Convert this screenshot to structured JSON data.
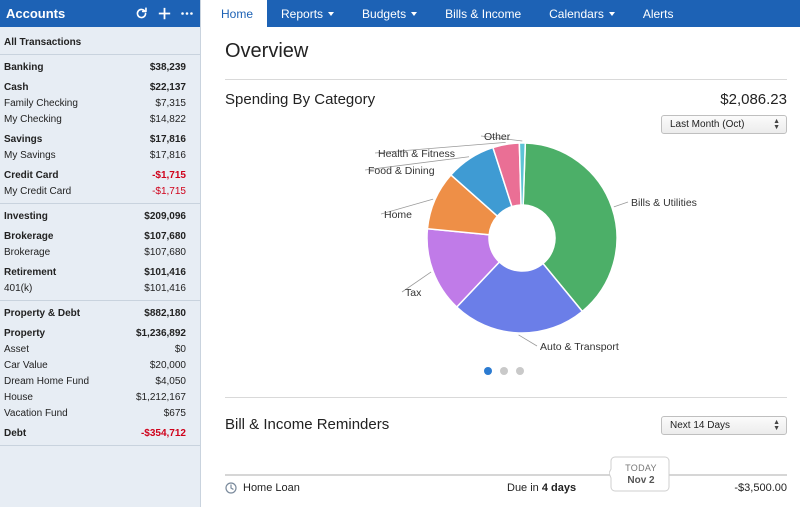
{
  "sidebar": {
    "title": "Accounts",
    "all_transactions": "All Transactions",
    "groups": [
      {
        "rows": [
          {
            "label": "Banking",
            "value": "$38,239",
            "bold": true
          },
          {
            "label": "Cash",
            "value": "$22,137",
            "bold": true,
            "gap": true
          },
          {
            "label": "Family Checking",
            "value": "$7,315"
          },
          {
            "label": "My Checking",
            "value": "$14,822"
          },
          {
            "label": "Savings",
            "value": "$17,816",
            "bold": true,
            "gap": true
          },
          {
            "label": "My Savings",
            "value": "$17,816"
          },
          {
            "label": "Credit Card",
            "value": "-$1,715",
            "bold": true,
            "gap": true,
            "neg": true
          },
          {
            "label": "My Credit Card",
            "value": "-$1,715",
            "neg": true
          }
        ]
      },
      {
        "rows": [
          {
            "label": "Investing",
            "value": "$209,096",
            "bold": true
          },
          {
            "label": "Brokerage",
            "value": "$107,680",
            "bold": true,
            "gap": true
          },
          {
            "label": "Brokerage",
            "value": "$107,680"
          },
          {
            "label": "Retirement",
            "value": "$101,416",
            "bold": true,
            "gap": true
          },
          {
            "label": "401(k)",
            "value": "$101,416"
          }
        ]
      },
      {
        "rows": [
          {
            "label": "Property & Debt",
            "value": "$882,180",
            "bold": true
          },
          {
            "label": "Property",
            "value": "$1,236,892",
            "bold": true,
            "gap": true
          },
          {
            "label": "Asset",
            "value": "$0"
          },
          {
            "label": "Car Value",
            "value": "$20,000"
          },
          {
            "label": "Dream Home Fund",
            "value": "$4,050"
          },
          {
            "label": "House",
            "value": "$1,212,167"
          },
          {
            "label": "Vacation Fund",
            "value": "$675"
          },
          {
            "label": "Debt",
            "value": "-$354,712",
            "bold": true,
            "gap": true,
            "neg": true
          }
        ]
      }
    ]
  },
  "nav": {
    "home": "Home",
    "reports": "Reports",
    "budgets": "Budgets",
    "bills_income": "Bills & Income",
    "calendars": "Calendars",
    "alerts": "Alerts"
  },
  "overview": {
    "title": "Overview"
  },
  "spending": {
    "title": "Spending By Category",
    "total": "$2,086.23",
    "period": "Last Month (Oct)"
  },
  "chart_data": {
    "type": "pie",
    "donut": true,
    "slices": [
      {
        "label": "Bills & Utilities",
        "value": 38.5,
        "color": "#4caf68"
      },
      {
        "label": "Auto & Transport",
        "value": 23.0,
        "color": "#6b7ee8"
      },
      {
        "label": "Tax",
        "value": 14.5,
        "color": "#c07be8"
      },
      {
        "label": "Home",
        "value": 10.0,
        "color": "#ee8f47"
      },
      {
        "label": "Food & Dining",
        "value": 8.5,
        "color": "#3f9bd3"
      },
      {
        "label": "Health & Fitness",
        "value": 4.5,
        "color": "#ea6f95"
      },
      {
        "label": "Other",
        "value": 1.0,
        "color": "#5dc4d6"
      }
    ]
  },
  "pager": {
    "count": 3,
    "active": 0
  },
  "reminders": {
    "title": "Bill & Income Reminders",
    "period": "Next 14 Days",
    "today_label": "TODAY",
    "today_date": "Nov 2",
    "items": [
      {
        "name": "Home Loan",
        "due_prefix": "Due in ",
        "due_days": "4 days",
        "amount": "-$3,500.00"
      }
    ]
  }
}
